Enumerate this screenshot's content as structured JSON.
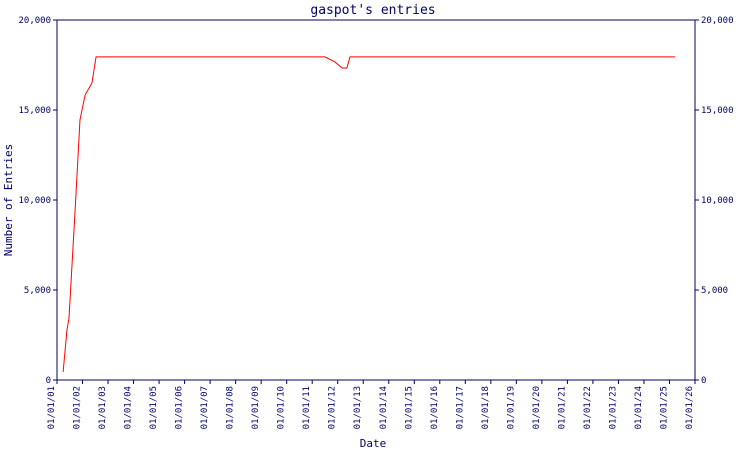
{
  "chart_data": {
    "type": "line",
    "title": "gaspot's entries",
    "x_label": "Date",
    "y_label": "Number of Entries",
    "x": [
      0.24,
      0.39,
      0.47,
      0.71,
      0.9,
      1.1,
      1.37,
      1.53,
      6.0,
      10.5,
      10.89,
      11.17,
      11.36,
      11.48,
      24.22
    ],
    "series": [
      {
        "name": "entries",
        "color": "#ff0000",
        "values": [
          444,
          2780,
          3440,
          9440,
          14440,
          15830,
          16500,
          17950,
          17950,
          17950,
          17670,
          17330,
          17330,
          17950,
          17950
        ]
      }
    ],
    "xlim": [
      0,
      25
    ],
    "xticks": [
      {
        "value": 0,
        "label": "01/01/01"
      },
      {
        "value": 1,
        "label": "01/01/02"
      },
      {
        "value": 2,
        "label": "01/01/03"
      },
      {
        "value": 3,
        "label": "01/01/04"
      },
      {
        "value": 4,
        "label": "01/01/05"
      },
      {
        "value": 5,
        "label": "01/01/06"
      },
      {
        "value": 6,
        "label": "01/01/07"
      },
      {
        "value": 7,
        "label": "01/01/08"
      },
      {
        "value": 8,
        "label": "01/01/09"
      },
      {
        "value": 9,
        "label": "01/01/10"
      },
      {
        "value": 10,
        "label": "01/01/11"
      },
      {
        "value": 11,
        "label": "01/01/12"
      },
      {
        "value": 12,
        "label": "01/01/13"
      },
      {
        "value": 13,
        "label": "01/01/14"
      },
      {
        "value": 14,
        "label": "01/01/15"
      },
      {
        "value": 15,
        "label": "01/01/16"
      },
      {
        "value": 16,
        "label": "01/01/17"
      },
      {
        "value": 17,
        "label": "01/01/18"
      },
      {
        "value": 18,
        "label": "01/01/19"
      },
      {
        "value": 19,
        "label": "01/01/20"
      },
      {
        "value": 20,
        "label": "01/01/21"
      },
      {
        "value": 21,
        "label": "01/01/22"
      },
      {
        "value": 22,
        "label": "01/01/23"
      },
      {
        "value": 23,
        "label": "01/01/24"
      },
      {
        "value": 24,
        "label": "01/01/25"
      },
      {
        "value": 25,
        "label": "01/01/26"
      }
    ],
    "ylim": [
      0,
      20000
    ],
    "yticks": [
      0,
      {
        "value": 5000,
        "label": "5,000"
      },
      {
        "value": 10000,
        "label": "10,000"
      },
      {
        "value": 15000,
        "label": "15,000"
      },
      {
        "value": 20000,
        "label": "20,000"
      }
    ]
  }
}
